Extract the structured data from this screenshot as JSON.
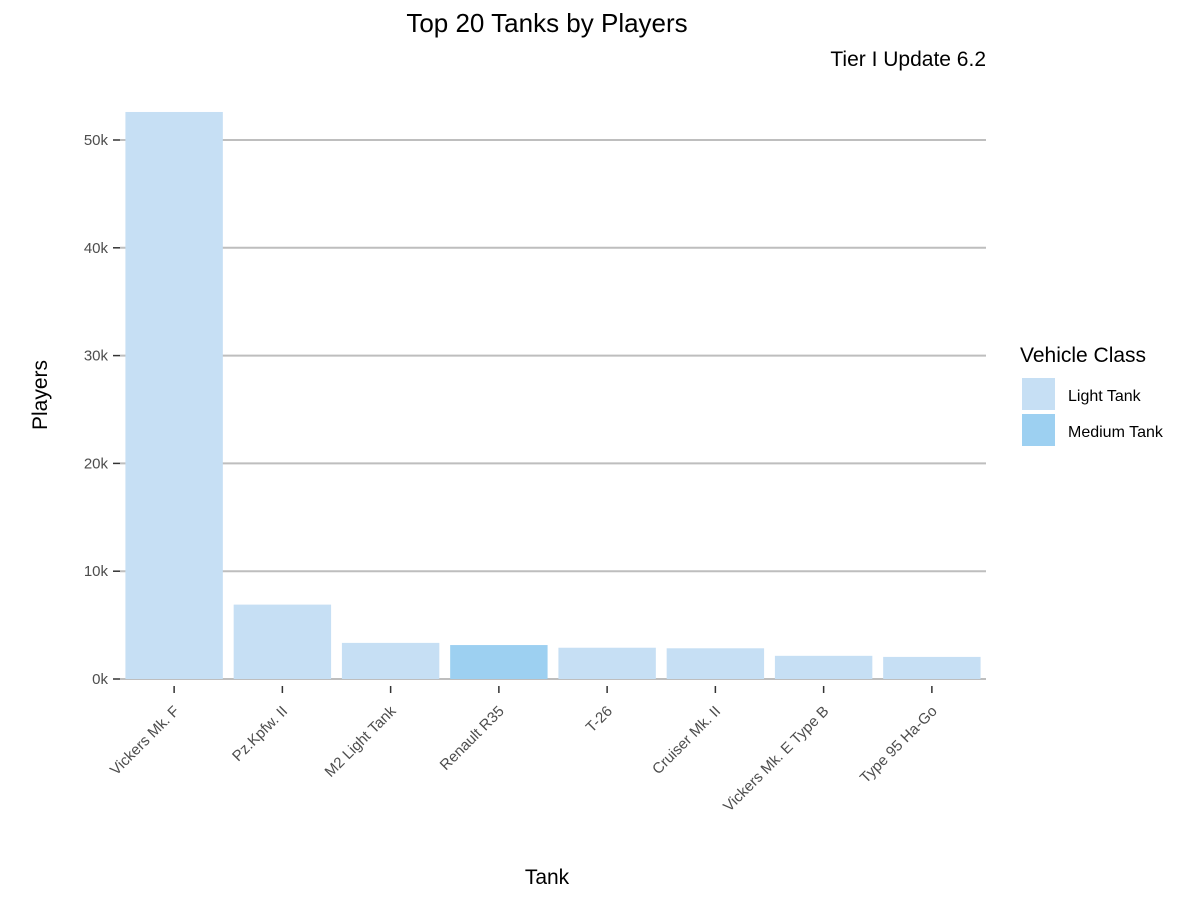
{
  "chart_data": {
    "type": "bar",
    "title": "Top 20 Tanks by Players",
    "subtitle": "Tier I Update 6.2",
    "xlabel": "Tank",
    "ylabel": "Players",
    "ylim": [
      0,
      52600
    ],
    "yticks": [
      0,
      10000,
      20000,
      30000,
      40000,
      50000
    ],
    "ytick_labels": [
      "0k",
      "10k",
      "20k",
      "30k",
      "40k",
      "50k"
    ],
    "grid": "horizontal",
    "legend": {
      "title": "Vehicle Class",
      "placement": "right",
      "entries": [
        {
          "label": "Light Tank",
          "color": "#c6dff4"
        },
        {
          "label": "Medium Tank",
          "color": "#9dd0f1"
        }
      ]
    },
    "categories": [
      "Vickers Mk. F",
      "Pz.Kpfw. II",
      "M2 Light Tank",
      "Renault R35",
      "T-26",
      "Cruiser Mk. II",
      "Vickers Mk. E Type B",
      "Type 95 Ha-Go"
    ],
    "values": [
      52600,
      6900,
      3350,
      3150,
      2900,
      2850,
      2150,
      2050
    ],
    "classes": [
      "Light Tank",
      "Light Tank",
      "Light Tank",
      "Medium Tank",
      "Light Tank",
      "Light Tank",
      "Light Tank",
      "Light Tank"
    ]
  }
}
